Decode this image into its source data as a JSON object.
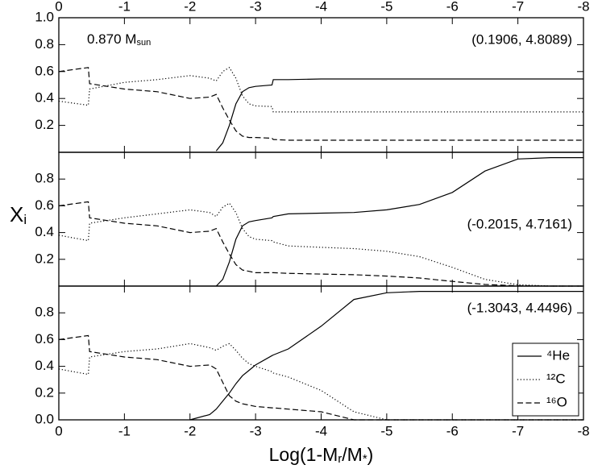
{
  "chart_data": [
    {
      "type": "line",
      "xlim": [
        0,
        -8
      ],
      "ylim": [
        0,
        1
      ],
      "xticks": [
        0,
        -1,
        -2,
        -3,
        -4,
        -5,
        -6,
        -7,
        -8
      ],
      "yticks": [
        0.2,
        0.4,
        0.6,
        0.8,
        {
          "value": 1,
          "label": "1.0"
        }
      ],
      "label": [
        "0.870 M",
        "sun"
      ],
      "coords": "(0.1906, 4.8089)",
      "x": [
        0,
        -0.45,
        -0.47,
        -1,
        -1.5,
        -2,
        -2.3,
        -2.4,
        -2.5,
        -2.6,
        -2.7,
        -2.8,
        -2.9,
        -3,
        -3.25,
        -3.27,
        -3.5,
        -4,
        -4.5,
        -5,
        -5.5,
        -6,
        -6.5,
        -7,
        -7.5,
        -8
      ],
      "series": [
        {
          "color": "#000000",
          "dash": "solid",
          "values": [
            null,
            null,
            null,
            null,
            null,
            null,
            null,
            0.01,
            0.07,
            0.2,
            0.36,
            0.45,
            0.48,
            0.49,
            0.5,
            0.54,
            0.54,
            0.545,
            0.545,
            0.545,
            0.545,
            0.545,
            0.545,
            0.545,
            0.545,
            0.545
          ]
        },
        {
          "color": "#000000",
          "dash": "dotted",
          "values": [
            0.38,
            0.35,
            0.47,
            0.52,
            0.54,
            0.57,
            0.55,
            0.53,
            0.6,
            0.63,
            0.55,
            0.42,
            0.36,
            0.345,
            0.34,
            0.3,
            0.3,
            0.3,
            0.3,
            0.3,
            0.3,
            0.3,
            0.3,
            0.3,
            0.3,
            0.3
          ]
        },
        {
          "color": "#000000",
          "dash": "dashed",
          "values": [
            0.6,
            0.63,
            0.51,
            0.47,
            0.45,
            0.4,
            0.41,
            0.43,
            0.33,
            0.24,
            0.16,
            0.12,
            0.11,
            0.11,
            0.105,
            0.095,
            0.09,
            0.09,
            0.09,
            0.09,
            0.09,
            0.09,
            0.09,
            0.09,
            0.09,
            0.09
          ]
        }
      ]
    },
    {
      "type": "line",
      "xlim": [
        0,
        -8
      ],
      "ylim": [
        0,
        1
      ],
      "xticks": [
        0,
        -1,
        -2,
        -3,
        -4,
        -5,
        -6,
        -7,
        -8
      ],
      "yticks": [
        0.2,
        0.4,
        0.6,
        0.8
      ],
      "y_label": [
        "X",
        "i"
      ],
      "coords": "(-0.2015, 4.7161)",
      "x": [
        0,
        -0.45,
        -0.47,
        -1,
        -1.5,
        -2,
        -2.3,
        -2.4,
        -2.5,
        -2.6,
        -2.7,
        -2.8,
        -2.9,
        -3,
        -3.25,
        -3.27,
        -3.5,
        -4,
        -4.5,
        -5,
        -5.5,
        -6,
        -6.5,
        -7,
        -7.5,
        -8
      ],
      "series": [
        {
          "color": "#000000",
          "dash": "solid",
          "values": [
            null,
            null,
            null,
            null,
            null,
            null,
            null,
            0.0,
            0.05,
            0.18,
            0.35,
            0.45,
            0.48,
            0.49,
            0.51,
            0.52,
            0.54,
            0.545,
            0.55,
            0.57,
            0.61,
            0.7,
            0.86,
            0.95,
            0.96,
            0.96
          ]
        },
        {
          "color": "#000000",
          "dash": "dotted",
          "values": [
            0.38,
            0.34,
            0.47,
            0.51,
            0.54,
            0.57,
            0.55,
            0.52,
            0.59,
            0.62,
            0.55,
            0.43,
            0.37,
            0.35,
            0.34,
            0.33,
            0.3,
            0.29,
            0.28,
            0.26,
            0.22,
            0.14,
            0.05,
            0.01,
            0,
            0
          ]
        },
        {
          "color": "#000000",
          "dash": "dashed",
          "values": [
            0.6,
            0.63,
            0.51,
            0.47,
            0.45,
            0.4,
            0.41,
            0.43,
            0.33,
            0.24,
            0.16,
            0.12,
            0.11,
            0.1,
            0.1,
            0.1,
            0.095,
            0.09,
            0.085,
            0.075,
            0.06,
            0.035,
            0.012,
            0.002,
            0,
            0
          ]
        }
      ]
    },
    {
      "type": "line",
      "xlim": [
        0,
        -8
      ],
      "ylim": [
        0,
        1
      ],
      "xticks": [
        0,
        -1,
        -2,
        -3,
        -4,
        -5,
        -6,
        -7,
        -8
      ],
      "yticks": [
        {
          "value": 0,
          "label": "0.0"
        },
        0.2,
        0.4,
        0.6,
        0.8
      ],
      "x_label": [
        "Log(1-M",
        "r",
        "/M",
        "*",
        ")"
      ],
      "coords": "(-1.3043, 4.4496)",
      "legend": "lower right",
      "x": [
        0,
        -0.45,
        -0.47,
        -1,
        -1.5,
        -2,
        -2.3,
        -2.4,
        -2.5,
        -2.6,
        -2.7,
        -2.8,
        -2.9,
        -3,
        -3.25,
        -3.27,
        -3.5,
        -4,
        -4.5,
        -5,
        -5.5,
        -6,
        -6.5,
        -7,
        -7.5,
        -8
      ],
      "series": [
        {
          "name": "⁴He",
          "color": "#000000",
          "dash": "solid",
          "values": [
            null,
            null,
            null,
            null,
            null,
            0,
            0.04,
            0.08,
            0.14,
            0.2,
            0.27,
            0.33,
            0.37,
            0.41,
            0.48,
            0.485,
            0.53,
            0.7,
            0.9,
            0.95,
            0.96,
            0.96,
            0.96,
            0.96,
            0.96,
            0.96
          ]
        },
        {
          "name": "¹²C",
          "color": "#000000",
          "dash": "dotted",
          "values": [
            0.38,
            0.34,
            0.47,
            0.51,
            0.53,
            0.57,
            0.54,
            0.52,
            0.55,
            0.57,
            0.52,
            0.46,
            0.42,
            0.4,
            0.36,
            0.35,
            0.32,
            0.22,
            0.06,
            0,
            0,
            0,
            0,
            0,
            0,
            0
          ]
        },
        {
          "name": "¹⁶O",
          "color": "#000000",
          "dash": "dashed",
          "values": [
            0.6,
            0.63,
            0.51,
            0.47,
            0.45,
            0.4,
            0.41,
            0.38,
            0.28,
            0.18,
            0.14,
            0.12,
            0.11,
            0.1,
            0.09,
            0.09,
            0.08,
            0.06,
            0,
            0,
            0,
            0,
            0,
            0,
            0,
            0
          ]
        }
      ]
    }
  ]
}
